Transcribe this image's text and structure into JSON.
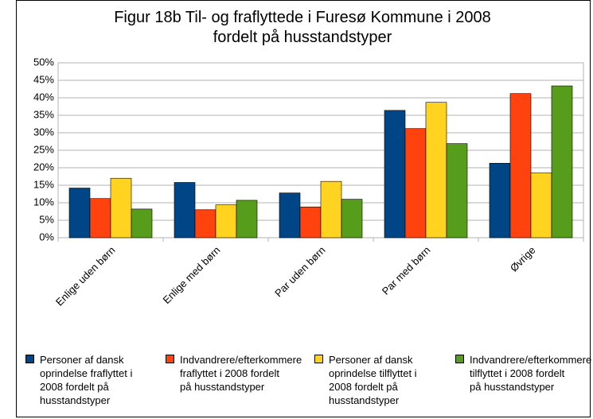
{
  "chart_data": {
    "type": "bar",
    "title": "Figur 18b Til- og fraflyttede i Furesø Kommune i 2008 fordelt på husstandstyper",
    "categories": [
      "Enlige uden børn",
      "Enlige med børn",
      "Par uden børn",
      "Par med børn",
      "Øvrige"
    ],
    "series": [
      {
        "name": "Personer af dansk oprindelse fraflyttet i 2008 fordelt på husstandstyper",
        "color": "#004586",
        "values": [
          14.2,
          15.8,
          12.8,
          36.4,
          21.3
        ]
      },
      {
        "name": "Indvandrere/efterkommere fraflyttet i 2008 fordelt på husstandstyper",
        "color": "#ff420e",
        "values": [
          11.2,
          8,
          8.8,
          31.2,
          41.2
        ]
      },
      {
        "name": "Personer af dansk oprindelse tilflyttet i 2008 fordelt på husstandstyper",
        "color": "#ffd320",
        "values": [
          17,
          9.4,
          16.1,
          38.7,
          18.5
        ]
      },
      {
        "name": "Indvandrere/efterkommere tilflyttet i 2008 fordelt på husstandstyper",
        "color": "#579d1c",
        "values": [
          8.2,
          10.7,
          11,
          26.9,
          43.4
        ]
      }
    ],
    "ylim": [
      0,
      50
    ],
    "yticks": [
      {
        "value": 0,
        "label": "0%"
      },
      {
        "value": 5,
        "label": "5%"
      },
      {
        "value": 10,
        "label": "10%"
      },
      {
        "value": 15,
        "label": "15%"
      },
      {
        "value": 20,
        "label": "20%"
      },
      {
        "value": 25,
        "label": "25%"
      },
      {
        "value": 30,
        "label": "30%"
      },
      {
        "value": 35,
        "label": "35%"
      },
      {
        "value": 40,
        "label": "40%"
      },
      {
        "value": 45,
        "label": "45%"
      },
      {
        "value": 50,
        "label": "50%"
      }
    ],
    "grid": true,
    "legend": "bottom"
  }
}
